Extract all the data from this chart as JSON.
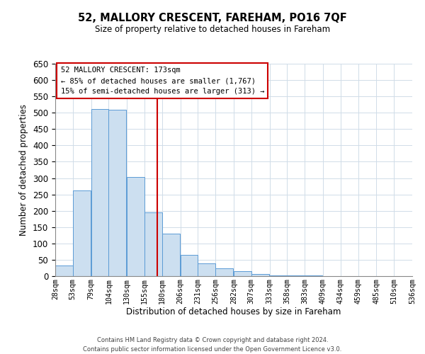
{
  "title": "52, MALLORY CRESCENT, FAREHAM, PO16 7QF",
  "subtitle": "Size of property relative to detached houses in Fareham",
  "xlabel": "Distribution of detached houses by size in Fareham",
  "ylabel": "Number of detached properties",
  "bar_left_edges": [
    28,
    53,
    79,
    104,
    130,
    155,
    180,
    206,
    231,
    256,
    282,
    307,
    333,
    358,
    383,
    409,
    434,
    459,
    485,
    510
  ],
  "bar_heights": [
    33,
    263,
    512,
    510,
    303,
    196,
    130,
    65,
    40,
    23,
    15,
    7,
    2,
    2,
    2,
    1,
    0,
    0,
    0,
    1
  ],
  "bin_width": 25,
  "tick_labels": [
    "28sqm",
    "53sqm",
    "79sqm",
    "104sqm",
    "130sqm",
    "155sqm",
    "180sqm",
    "206sqm",
    "231sqm",
    "256sqm",
    "282sqm",
    "307sqm",
    "333sqm",
    "358sqm",
    "383sqm",
    "409sqm",
    "434sqm",
    "459sqm",
    "485sqm",
    "510sqm",
    "536sqm"
  ],
  "bar_color": "#ccdff0",
  "bar_edge_color": "#5b9bd5",
  "vline_x": 173,
  "vline_color": "#cc0000",
  "ylim": [
    0,
    650
  ],
  "yticks": [
    0,
    50,
    100,
    150,
    200,
    250,
    300,
    350,
    400,
    450,
    500,
    550,
    600,
    650
  ],
  "annotation_title": "52 MALLORY CRESCENT: 173sqm",
  "annotation_line1": "← 85% of detached houses are smaller (1,767)",
  "annotation_line2": "15% of semi-detached houses are larger (313) →",
  "annotation_box_color": "#ffffff",
  "annotation_box_edge": "#cc0000",
  "footer1": "Contains HM Land Registry data © Crown copyright and database right 2024.",
  "footer2": "Contains public sector information licensed under the Open Government Licence v3.0.",
  "background_color": "#ffffff",
  "grid_color": "#d0dce8"
}
